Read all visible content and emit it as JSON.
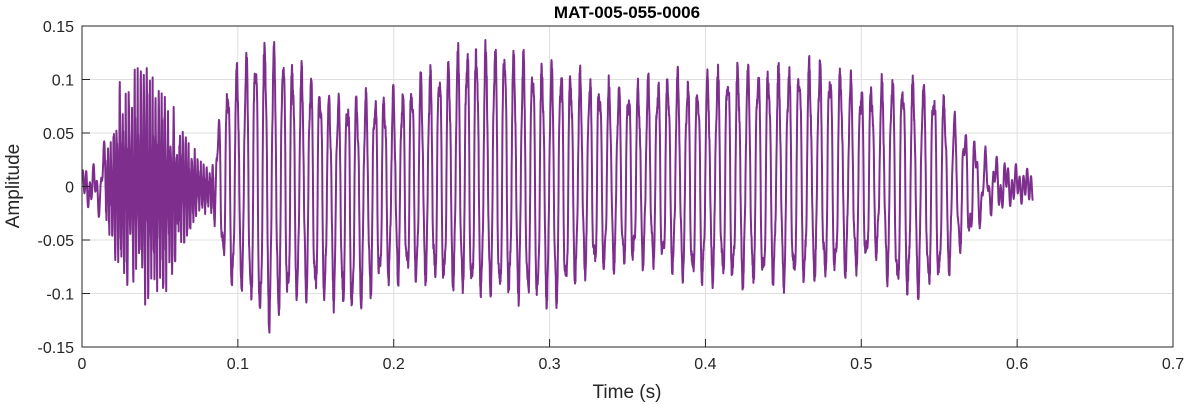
{
  "chart_data": {
    "type": "line",
    "title": "MAT-005-055-0006",
    "xlabel": "Time (s)",
    "ylabel": "Amplitude",
    "xlim": [
      0,
      0.7
    ],
    "ylim": [
      -0.15,
      0.15
    ],
    "xticks": [
      0,
      0.1,
      0.2,
      0.3,
      0.4,
      0.5,
      0.6,
      0.7
    ],
    "xtick_labels": [
      "0",
      "0.1",
      "0.2",
      "0.3",
      "0.4",
      "0.5",
      "0.6",
      "0.7"
    ],
    "yticks": [
      -0.15,
      -0.1,
      -0.05,
      0,
      0.05,
      0.1,
      0.15
    ],
    "ytick_labels": [
      "-0.15",
      "-0.1",
      "-0.05",
      "0",
      "0.05",
      "0.1",
      "0.15"
    ],
    "grid": true,
    "line_color": "#7E2F8E",
    "signal_duration_s": 0.61,
    "envelope": {
      "time_s": [
        0,
        0.01,
        0.02,
        0.025,
        0.035,
        0.045,
        0.055,
        0.065,
        0.075,
        0.082,
        0.088,
        0.095,
        0.105,
        0.118,
        0.13,
        0.145,
        0.16,
        0.175,
        0.19,
        0.2,
        0.215,
        0.23,
        0.245,
        0.26,
        0.275,
        0.29,
        0.305,
        0.32,
        0.335,
        0.35,
        0.365,
        0.38,
        0.395,
        0.41,
        0.425,
        0.44,
        0.455,
        0.47,
        0.485,
        0.5,
        0.51,
        0.52,
        0.535,
        0.55,
        0.565,
        0.58,
        0.595,
        0.605,
        0.61
      ],
      "positive": [
        0.005,
        0.012,
        0.06,
        0.105,
        0.112,
        0.115,
        0.09,
        0.055,
        0.03,
        0.015,
        0.06,
        0.105,
        0.12,
        0.135,
        0.12,
        0.105,
        0.08,
        0.08,
        0.085,
        0.085,
        0.1,
        0.11,
        0.13,
        0.132,
        0.128,
        0.115,
        0.108,
        0.105,
        0.095,
        0.09,
        0.1,
        0.105,
        0.095,
        0.11,
        0.112,
        0.108,
        0.11,
        0.115,
        0.108,
        0.095,
        0.095,
        0.1,
        0.098,
        0.088,
        0.05,
        0.025,
        0.012,
        0.006,
        0.004
      ],
      "negative": [
        -0.006,
        -0.014,
        -0.06,
        -0.1,
        -0.11,
        -0.118,
        -0.12,
        -0.06,
        -0.035,
        -0.02,
        -0.055,
        -0.09,
        -0.1,
        -0.132,
        -0.11,
        -0.1,
        -0.105,
        -0.12,
        -0.09,
        -0.085,
        -0.085,
        -0.09,
        -0.095,
        -0.1,
        -0.1,
        -0.105,
        -0.11,
        -0.08,
        -0.075,
        -0.07,
        -0.07,
        -0.075,
        -0.09,
        -0.085,
        -0.09,
        -0.088,
        -0.09,
        -0.085,
        -0.08,
        -0.075,
        -0.06,
        -0.095,
        -0.1,
        -0.09,
        -0.055,
        -0.02,
        -0.008,
        -0.004,
        -0.002
      ]
    }
  }
}
